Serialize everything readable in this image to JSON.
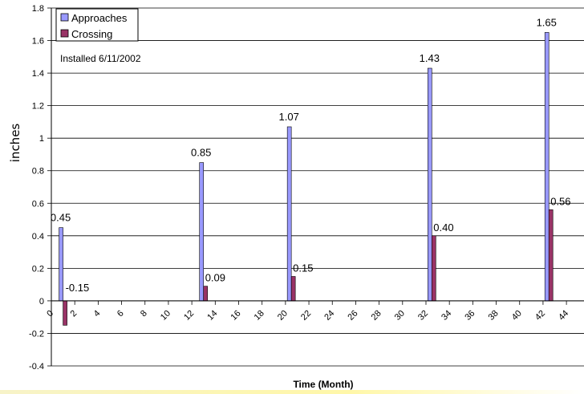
{
  "chart_data": {
    "type": "bar",
    "xlabel": "Time (Month)",
    "ylabel": "inches",
    "annotation": "Installed 6/11/2002",
    "ylim": [
      -0.4,
      1.8
    ],
    "yticks": [
      "-0.4",
      "-0.2",
      "0",
      "0.2",
      "0.4",
      "0.6",
      "0.8",
      "1",
      "1.2",
      "1.4",
      "1.6",
      "1.8"
    ],
    "xlim": [
      0,
      45.5
    ],
    "xticks": [
      "0",
      "2",
      "4",
      "6",
      "8",
      "10",
      "12",
      "14",
      "16",
      "18",
      "20",
      "22",
      "24",
      "26",
      "28",
      "30",
      "32",
      "34",
      "36",
      "38",
      "40",
      "42",
      "44"
    ],
    "x": [
      1,
      13,
      20.5,
      32.5,
      42.5
    ],
    "grid": true,
    "legend_position": "top-left",
    "series": [
      {
        "name": "Approaches",
        "color": "#9999ff",
        "values": [
          0.45,
          0.85,
          1.07,
          1.43,
          1.65
        ],
        "labels": [
          "0.45",
          "0.85",
          "1.07",
          "1.43",
          "1.65"
        ]
      },
      {
        "name": "Crossing",
        "color": "#993366",
        "values": [
          -0.15,
          0.09,
          0.15,
          0.4,
          0.56
        ],
        "labels": [
          "-0.15",
          "0.09",
          "0.15",
          "0.40",
          "0.56"
        ]
      }
    ]
  }
}
